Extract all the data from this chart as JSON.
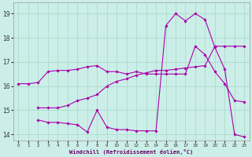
{
  "xlabel": "Windchill (Refroidissement éolien,°C)",
  "bg_color": "#cceee8",
  "grid_color": "#aaddcc",
  "line_color": "#aa00aa",
  "xlim": [
    -0.5,
    23.5
  ],
  "ylim": [
    13.75,
    19.45
  ],
  "xticks": [
    0,
    1,
    2,
    3,
    4,
    5,
    6,
    7,
    8,
    9,
    10,
    11,
    12,
    13,
    14,
    15,
    16,
    17,
    18,
    19,
    20,
    21,
    22,
    23
  ],
  "yticks": [
    14,
    15,
    16,
    17,
    18,
    19
  ],
  "line1_x": [
    0,
    1,
    2,
    3,
    4,
    5,
    6,
    7,
    8,
    9,
    10,
    11,
    12,
    13,
    14,
    15,
    16,
    17,
    18,
    19,
    20,
    21,
    22,
    23
  ],
  "line1_y": [
    16.1,
    16.1,
    16.15,
    16.6,
    16.65,
    16.65,
    16.7,
    16.8,
    16.85,
    16.6,
    16.6,
    16.5,
    16.6,
    16.5,
    16.5,
    16.5,
    16.5,
    16.5,
    17.65,
    17.3,
    16.6,
    16.1,
    15.4,
    15.35
  ],
  "line2_x": [
    2,
    3,
    4,
    5,
    6,
    7,
    8,
    9,
    10,
    11,
    12,
    13,
    14,
    15,
    16,
    17,
    18,
    19,
    20,
    21,
    22,
    23
  ],
  "line2_y": [
    15.1,
    15.1,
    15.1,
    15.2,
    15.4,
    15.5,
    15.65,
    16.0,
    16.2,
    16.3,
    16.45,
    16.55,
    16.65,
    16.65,
    16.7,
    16.75,
    16.8,
    16.85,
    17.65,
    17.65,
    17.65,
    17.65
  ],
  "line3_x": [
    2,
    3,
    4,
    5,
    6,
    7,
    8,
    9,
    10,
    11,
    12,
    13,
    14,
    15,
    16,
    17,
    18,
    19,
    20,
    21,
    22,
    23
  ],
  "line3_y": [
    14.6,
    14.5,
    14.5,
    14.45,
    14.4,
    14.1,
    15.0,
    14.3,
    14.2,
    14.2,
    14.15,
    14.15,
    14.15,
    18.5,
    19.0,
    18.7,
    19.0,
    18.75,
    17.6,
    16.7,
    14.0,
    13.9
  ]
}
